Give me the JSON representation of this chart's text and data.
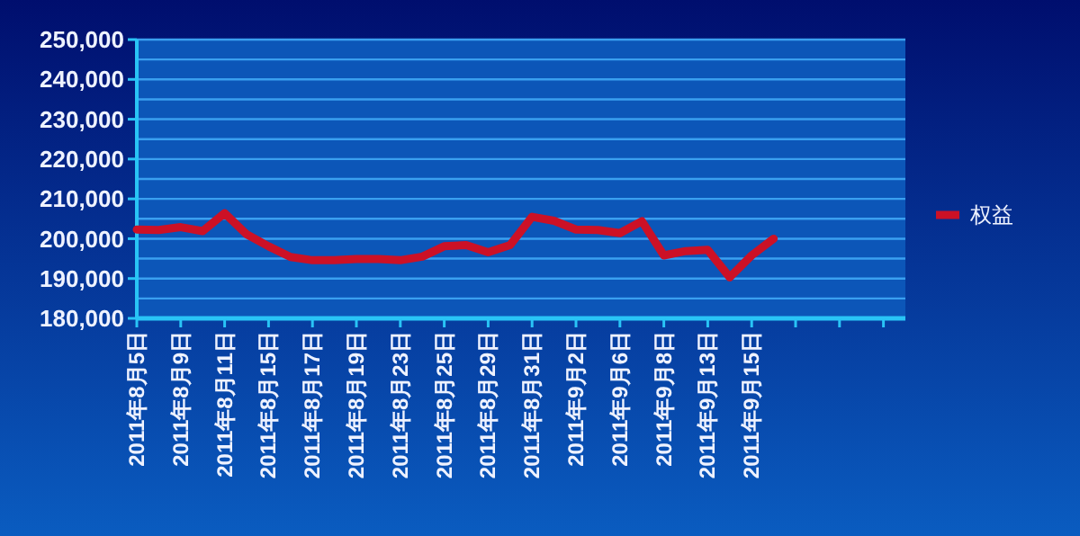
{
  "chart_data": {
    "type": "line",
    "categories": [
      "2011年8月5日",
      null,
      "2011年8月9日",
      null,
      "2011年8月11日",
      null,
      "2011年8月15日",
      null,
      "2011年8月17日",
      null,
      "2011年8月19日",
      null,
      "2011年8月23日",
      null,
      "2011年8月25日",
      null,
      "2011年8月29日",
      null,
      "2011年8月31日",
      null,
      "2011年9月2日",
      null,
      "2011年9月6日",
      null,
      "2011年9月8日",
      null,
      "2011年9月13日",
      null,
      "2011年9月15日",
      null,
      null,
      null,
      null,
      null,
      null,
      null
    ],
    "series": [
      {
        "name": "权益",
        "color": "#cc1126",
        "values": [
          202300,
          202200,
          202900,
          201900,
          206400,
          201100,
          198100,
          195400,
          194600,
          194600,
          194900,
          194900,
          194600,
          195500,
          198100,
          198400,
          196600,
          198400,
          205500,
          204500,
          202300,
          202200,
          201400,
          204400,
          195800,
          196900,
          197200,
          190300,
          195800,
          200000,
          null,
          null,
          null,
          null,
          null,
          null
        ]
      }
    ],
    "ylim": [
      180000,
      250000
    ],
    "yticks": [
      {
        "value": 180000,
        "label": "180,000"
      },
      {
        "value": 185000,
        "label": null
      },
      {
        "value": 190000,
        "label": "190,000"
      },
      {
        "value": 195000,
        "label": null
      },
      {
        "value": 200000,
        "label": "200,000"
      },
      {
        "value": 205000,
        "label": null
      },
      {
        "value": 210000,
        "label": "210,000"
      },
      {
        "value": 215000,
        "label": null
      },
      {
        "value": 220000,
        "label": "220,000"
      },
      {
        "value": 225000,
        "label": null
      },
      {
        "value": 230000,
        "label": "230,000"
      },
      {
        "value": 235000,
        "label": null
      },
      {
        "value": 240000,
        "label": "240,000"
      },
      {
        "value": 245000,
        "label": null
      },
      {
        "value": 250000,
        "label": "250,000"
      }
    ],
    "grid": "y",
    "legend": "right",
    "marker": "none",
    "line_style": "solid"
  }
}
